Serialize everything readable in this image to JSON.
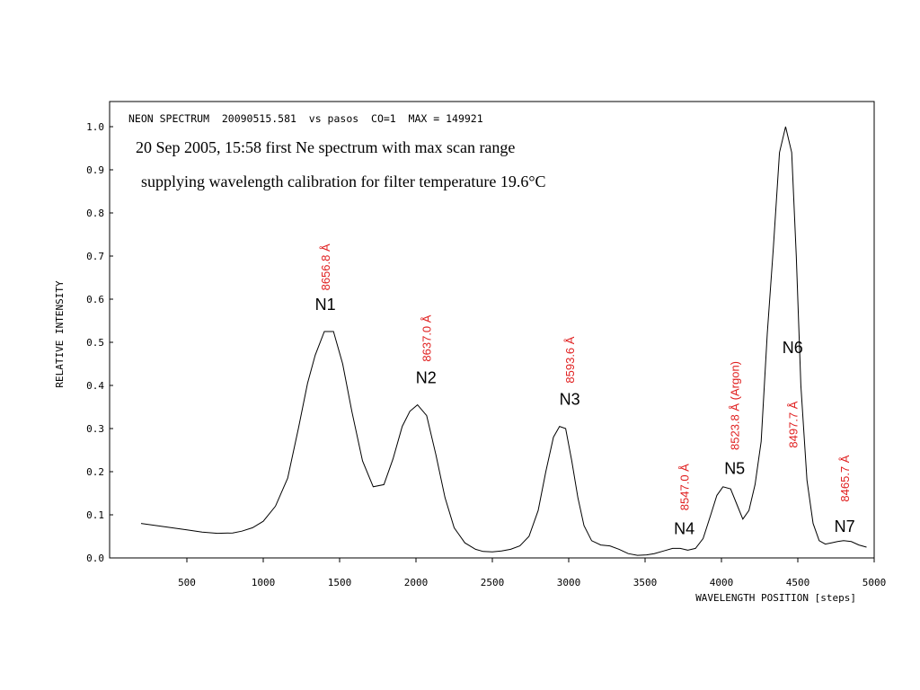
{
  "chart_data": {
    "type": "line",
    "header": "NEON SPECTRUM  20090515.581  vs pasos  CO=1  MAX = 149921",
    "subtitle_line1": "20 Sep 2005, 15:58 first Ne spectrum with max scan range",
    "subtitle_line2": "supplying wavelength calibration for filter temperature 19.6°C",
    "xlabel": "WAVELENGTH POSITION [steps]",
    "ylabel": "RELATIVE INTENSITY",
    "xlim": [
      0,
      5000
    ],
    "ylim": [
      0,
      1.05
    ],
    "xticks": [
      500,
      1000,
      1500,
      2000,
      2500,
      3000,
      3500,
      4000,
      4500,
      5000
    ],
    "yticks": [
      0.0,
      0.1,
      0.2,
      0.3,
      0.4,
      0.5,
      0.6,
      0.7,
      0.8,
      0.9,
      1.0
    ],
    "line_color": "#000000",
    "annotation_color": "#e02020",
    "series": [
      {
        "x": [
          200,
          300,
          400,
          500,
          600,
          700,
          800,
          860,
          930,
          1000,
          1080,
          1160,
          1230,
          1290,
          1340,
          1400,
          1460,
          1520,
          1580,
          1650,
          1720,
          1790,
          1850,
          1910,
          1960,
          2010,
          2070,
          2130,
          2190,
          2250,
          2320,
          2390,
          2440,
          2500,
          2560,
          2620,
          2680,
          2740,
          2800,
          2850,
          2900,
          2940,
          2980,
          3020,
          3060,
          3100,
          3150,
          3210,
          3270,
          3330,
          3390,
          3450,
          3510,
          3560,
          3620,
          3680,
          3730,
          3780,
          3830,
          3880,
          3930,
          3970,
          4010,
          4060,
          4100,
          4140,
          4180,
          4220,
          4260,
          4300,
          4340,
          4380,
          4420,
          4460,
          4490,
          4520,
          4560,
          4600,
          4640,
          4680,
          4720,
          4760,
          4800,
          4850,
          4900,
          4950
        ],
        "y": [
          0.08,
          0.075,
          0.07,
          0.065,
          0.06,
          0.057,
          0.058,
          0.062,
          0.07,
          0.085,
          0.12,
          0.185,
          0.3,
          0.405,
          0.47,
          0.525,
          0.525,
          0.45,
          0.34,
          0.225,
          0.165,
          0.17,
          0.23,
          0.305,
          0.34,
          0.355,
          0.33,
          0.24,
          0.14,
          0.07,
          0.035,
          0.02,
          0.015,
          0.014,
          0.016,
          0.02,
          0.028,
          0.05,
          0.11,
          0.2,
          0.28,
          0.305,
          0.3,
          0.225,
          0.14,
          0.075,
          0.04,
          0.03,
          0.028,
          0.02,
          0.01,
          0.006,
          0.007,
          0.01,
          0.016,
          0.022,
          0.022,
          0.018,
          0.022,
          0.045,
          0.1,
          0.145,
          0.165,
          0.16,
          0.125,
          0.09,
          0.11,
          0.17,
          0.27,
          0.52,
          0.72,
          0.94,
          1.0,
          0.94,
          0.7,
          0.4,
          0.18,
          0.08,
          0.04,
          0.032,
          0.035,
          0.038,
          0.04,
          0.038,
          0.03,
          0.025
        ]
      }
    ],
    "peaks": [
      {
        "label": "N1",
        "wavelength": "8656.8 Å",
        "x": 1430,
        "label_y": 0.575,
        "wl_y": 0.62
      },
      {
        "label": "N2",
        "wavelength": "8637.0 Å",
        "x": 2090,
        "label_y": 0.405,
        "wl_y": 0.455
      },
      {
        "label": "N3",
        "wavelength": "8593.6 Å",
        "x": 3030,
        "label_y": 0.355,
        "wl_y": 0.405
      },
      {
        "label": "N4",
        "wavelength": "8547.0 Å",
        "x": 3780,
        "label_y": 0.055,
        "wl_y": 0.11
      },
      {
        "label": "N5",
        "wavelength": "8523.8 Å (Argon)",
        "x": 4110,
        "label_y": 0.195,
        "wl_y": 0.25
      },
      {
        "label": "N6",
        "wavelength": "8497.7 Å",
        "x": 4490,
        "label_y": 0.475,
        "wl_y": 0.255
      },
      {
        "label": "N7",
        "wavelength": "8465.7 Å",
        "x": 4830,
        "label_y": 0.06,
        "wl_y": 0.13
      }
    ]
  }
}
